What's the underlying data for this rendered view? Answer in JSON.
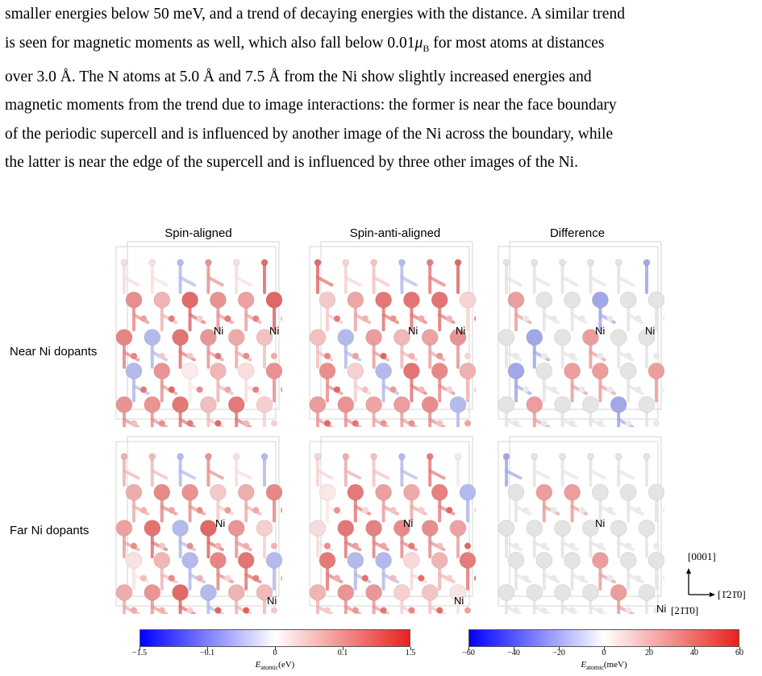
{
  "paragraph": {
    "lines": [
      "smaller energies below 50 meV, and a trend of decaying energies with the distance. A similar trend",
      "is seen for magnetic moments as well, which also fall below 0.01μ_B for most atoms at distances",
      "over 3.0 Å. The N atoms at 5.0 Å and 7.5 Å from the Ni show slightly increased energies and",
      "magnetic moments from the trend due to image interactions: the former is near the face boundary",
      "of the periodic supercell and is influenced by another image of the Ni across the boundary, while",
      "the latter is near the edge of the supercell and is influenced by three other images of the Ni."
    ]
  },
  "figure": {
    "columns": [
      "Spin-aligned",
      "Spin-anti-aligned",
      "Difference"
    ],
    "rows": [
      "Near Ni dopants",
      "Far Ni dopants"
    ],
    "ni_label": "Ni",
    "axes": {
      "vertical": "[0001]",
      "horizontal": "[1̄21̄0]",
      "diagonal": "[21̄1̄0]"
    },
    "colorbars": [
      {
        "ticks": [
          "−1.5",
          "−0.1",
          "0",
          "0.1",
          "1.5"
        ],
        "label_main": "E",
        "label_sub": "atomic",
        "label_unit": "(eV)",
        "colors": [
          "#0000ff",
          "#ffffff",
          "#e8221f"
        ]
      },
      {
        "ticks": [
          "−60",
          "−40",
          "−20",
          "0",
          "20",
          "40",
          "60"
        ],
        "label_main": "E",
        "label_sub": "atomic",
        "label_unit": "(meV)",
        "colors": [
          "#0000ff",
          "#ffffff",
          "#e8221f"
        ]
      }
    ]
  }
}
